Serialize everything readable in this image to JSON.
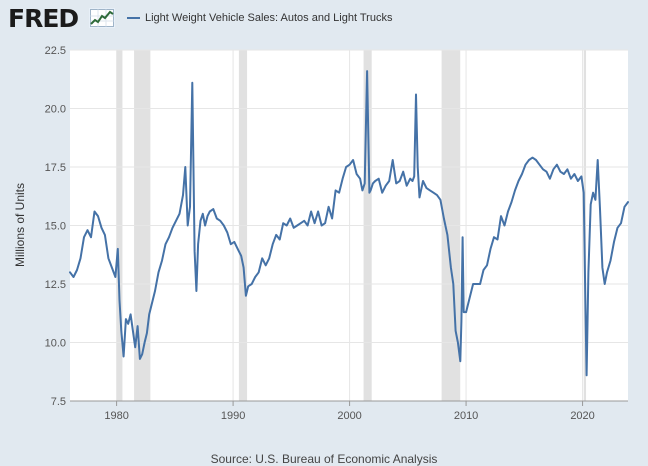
{
  "header": {
    "logo_text": "FRED",
    "legend_label": "Light Weight Vehicle Sales: Autos and Light Trucks",
    "series_color": "#4572a7"
  },
  "footer": {
    "source": "Source: U.S. Bureau of Economic Analysis"
  },
  "chart_data": {
    "type": "line",
    "title": "Light Weight Vehicle Sales: Autos and Light Trucks",
    "ylabel": "Millions of Units",
    "xlabel": "",
    "xlim": [
      1976.0,
      2023.9
    ],
    "ylim": [
      7.5,
      22.5
    ],
    "xticks": [
      1980,
      1990,
      2000,
      2010,
      2020
    ],
    "xtick_labels": [
      "1980",
      "1990",
      "2000",
      "2010",
      "2020"
    ],
    "yticks": [
      7.5,
      10.0,
      12.5,
      15.0,
      17.5,
      20.0,
      22.5
    ],
    "ytick_labels": [
      "7.5",
      "10.0",
      "12.5",
      "15.0",
      "17.5",
      "20.0",
      "22.5"
    ],
    "grid": true,
    "recessions": [
      [
        1980.0,
        1980.5
      ],
      [
        1981.5,
        1982.9
      ],
      [
        1990.5,
        1991.2
      ],
      [
        2001.2,
        2001.9
      ],
      [
        2007.9,
        2009.5
      ],
      [
        2020.1,
        2020.3
      ]
    ],
    "series": [
      {
        "name": "Light Weight Vehicle Sales: Autos and Light Trucks",
        "x": [
          1976.0,
          1976.3,
          1976.6,
          1976.9,
          1977.2,
          1977.5,
          1977.8,
          1978.1,
          1978.4,
          1978.7,
          1979.0,
          1979.3,
          1979.6,
          1979.9,
          1980.1,
          1980.25,
          1980.4,
          1980.6,
          1980.8,
          1981.0,
          1981.2,
          1981.4,
          1981.6,
          1981.8,
          1982.0,
          1982.2,
          1982.4,
          1982.6,
          1982.8,
          1983.0,
          1983.3,
          1983.6,
          1983.9,
          1984.2,
          1984.5,
          1984.8,
          1985.1,
          1985.4,
          1985.7,
          1985.9,
          1986.1,
          1986.3,
          1986.5,
          1986.7,
          1986.85,
          1987.0,
          1987.2,
          1987.4,
          1987.6,
          1987.8,
          1988.0,
          1988.3,
          1988.6,
          1988.9,
          1989.2,
          1989.5,
          1989.8,
          1990.1,
          1990.4,
          1990.7,
          1990.9,
          1991.1,
          1991.3,
          1991.6,
          1991.9,
          1992.2,
          1992.5,
          1992.8,
          1993.1,
          1993.4,
          1993.7,
          1994.0,
          1994.3,
          1994.6,
          1994.9,
          1995.2,
          1995.5,
          1995.8,
          1996.1,
          1996.4,
          1996.7,
          1997.0,
          1997.3,
          1997.6,
          1997.9,
          1998.2,
          1998.5,
          1998.8,
          1999.1,
          1999.4,
          1999.7,
          2000.0,
          2000.3,
          2000.6,
          2000.9,
          2001.1,
          2001.3,
          2001.5,
          2001.7,
          2001.8,
          2002.0,
          2002.2,
          2002.5,
          2002.8,
          2003.1,
          2003.4,
          2003.7,
          2004.0,
          2004.3,
          2004.6,
          2004.9,
          2005.2,
          2005.4,
          2005.55,
          2005.7,
          2005.85,
          2006.0,
          2006.3,
          2006.6,
          2006.9,
          2007.2,
          2007.5,
          2007.8,
          2008.1,
          2008.4,
          2008.7,
          2008.9,
          2009.1,
          2009.3,
          2009.5,
          2009.6,
          2009.7,
          2009.8,
          2010.0,
          2010.3,
          2010.6,
          2010.9,
          2011.2,
          2011.5,
          2011.8,
          2012.1,
          2012.4,
          2012.7,
          2013.0,
          2013.3,
          2013.6,
          2013.9,
          2014.2,
          2014.5,
          2014.8,
          2015.1,
          2015.4,
          2015.7,
          2016.0,
          2016.3,
          2016.6,
          2016.9,
          2017.2,
          2017.5,
          2017.8,
          2018.1,
          2018.4,
          2018.7,
          2019.0,
          2019.3,
          2019.6,
          2019.9,
          2020.1,
          2020.25,
          2020.35,
          2020.5,
          2020.7,
          2020.9,
          2021.1,
          2021.3,
          2021.5,
          2021.7,
          2021.9,
          2022.1,
          2022.4,
          2022.7,
          2023.0,
          2023.3,
          2023.6,
          2023.9
        ],
        "values": [
          13.0,
          12.8,
          13.1,
          13.6,
          14.5,
          14.8,
          14.5,
          15.6,
          15.4,
          14.9,
          14.6,
          13.6,
          13.2,
          12.8,
          14.0,
          11.8,
          10.5,
          9.4,
          11.0,
          10.8,
          11.2,
          10.5,
          9.8,
          10.7,
          9.3,
          9.5,
          10.0,
          10.4,
          11.2,
          11.6,
          12.2,
          13.0,
          13.5,
          14.2,
          14.5,
          14.9,
          15.2,
          15.5,
          16.3,
          17.5,
          15.0,
          15.8,
          21.1,
          13.9,
          12.2,
          14.2,
          15.2,
          15.5,
          15.0,
          15.4,
          15.6,
          15.7,
          15.3,
          15.2,
          15.0,
          14.7,
          14.2,
          14.3,
          14.0,
          13.7,
          13.2,
          12.0,
          12.4,
          12.5,
          12.8,
          13.0,
          13.6,
          13.3,
          13.6,
          14.2,
          14.6,
          14.4,
          15.1,
          15.0,
          15.3,
          14.9,
          15.0,
          15.1,
          15.2,
          15.0,
          15.6,
          15.1,
          15.6,
          15.0,
          15.1,
          15.8,
          15.3,
          16.5,
          16.4,
          17.0,
          17.5,
          17.6,
          17.8,
          17.2,
          17.0,
          16.5,
          16.8,
          21.6,
          16.4,
          16.5,
          16.8,
          16.9,
          17.0,
          16.4,
          16.7,
          16.9,
          17.8,
          16.8,
          16.9,
          17.3,
          16.7,
          17.0,
          16.9,
          17.1,
          20.6,
          17.5,
          16.2,
          16.9,
          16.6,
          16.5,
          16.4,
          16.3,
          16.1,
          15.3,
          14.6,
          13.2,
          12.5,
          10.5,
          10.0,
          9.2,
          10.9,
          14.5,
          11.3,
          11.3,
          11.9,
          12.5,
          12.5,
          12.5,
          13.1,
          13.3,
          14.0,
          14.5,
          14.4,
          15.4,
          15.0,
          15.6,
          16.0,
          16.5,
          16.9,
          17.2,
          17.6,
          17.8,
          17.9,
          17.8,
          17.6,
          17.4,
          17.3,
          17.0,
          17.4,
          17.6,
          17.3,
          17.2,
          17.4,
          17.0,
          17.2,
          16.9,
          17.1,
          16.4,
          11.4,
          8.6,
          13.0,
          15.9,
          16.4,
          16.1,
          17.8,
          15.7,
          13.2,
          12.5,
          13.0,
          13.5,
          14.3,
          14.9,
          15.1,
          15.8,
          16.0
        ]
      }
    ]
  }
}
